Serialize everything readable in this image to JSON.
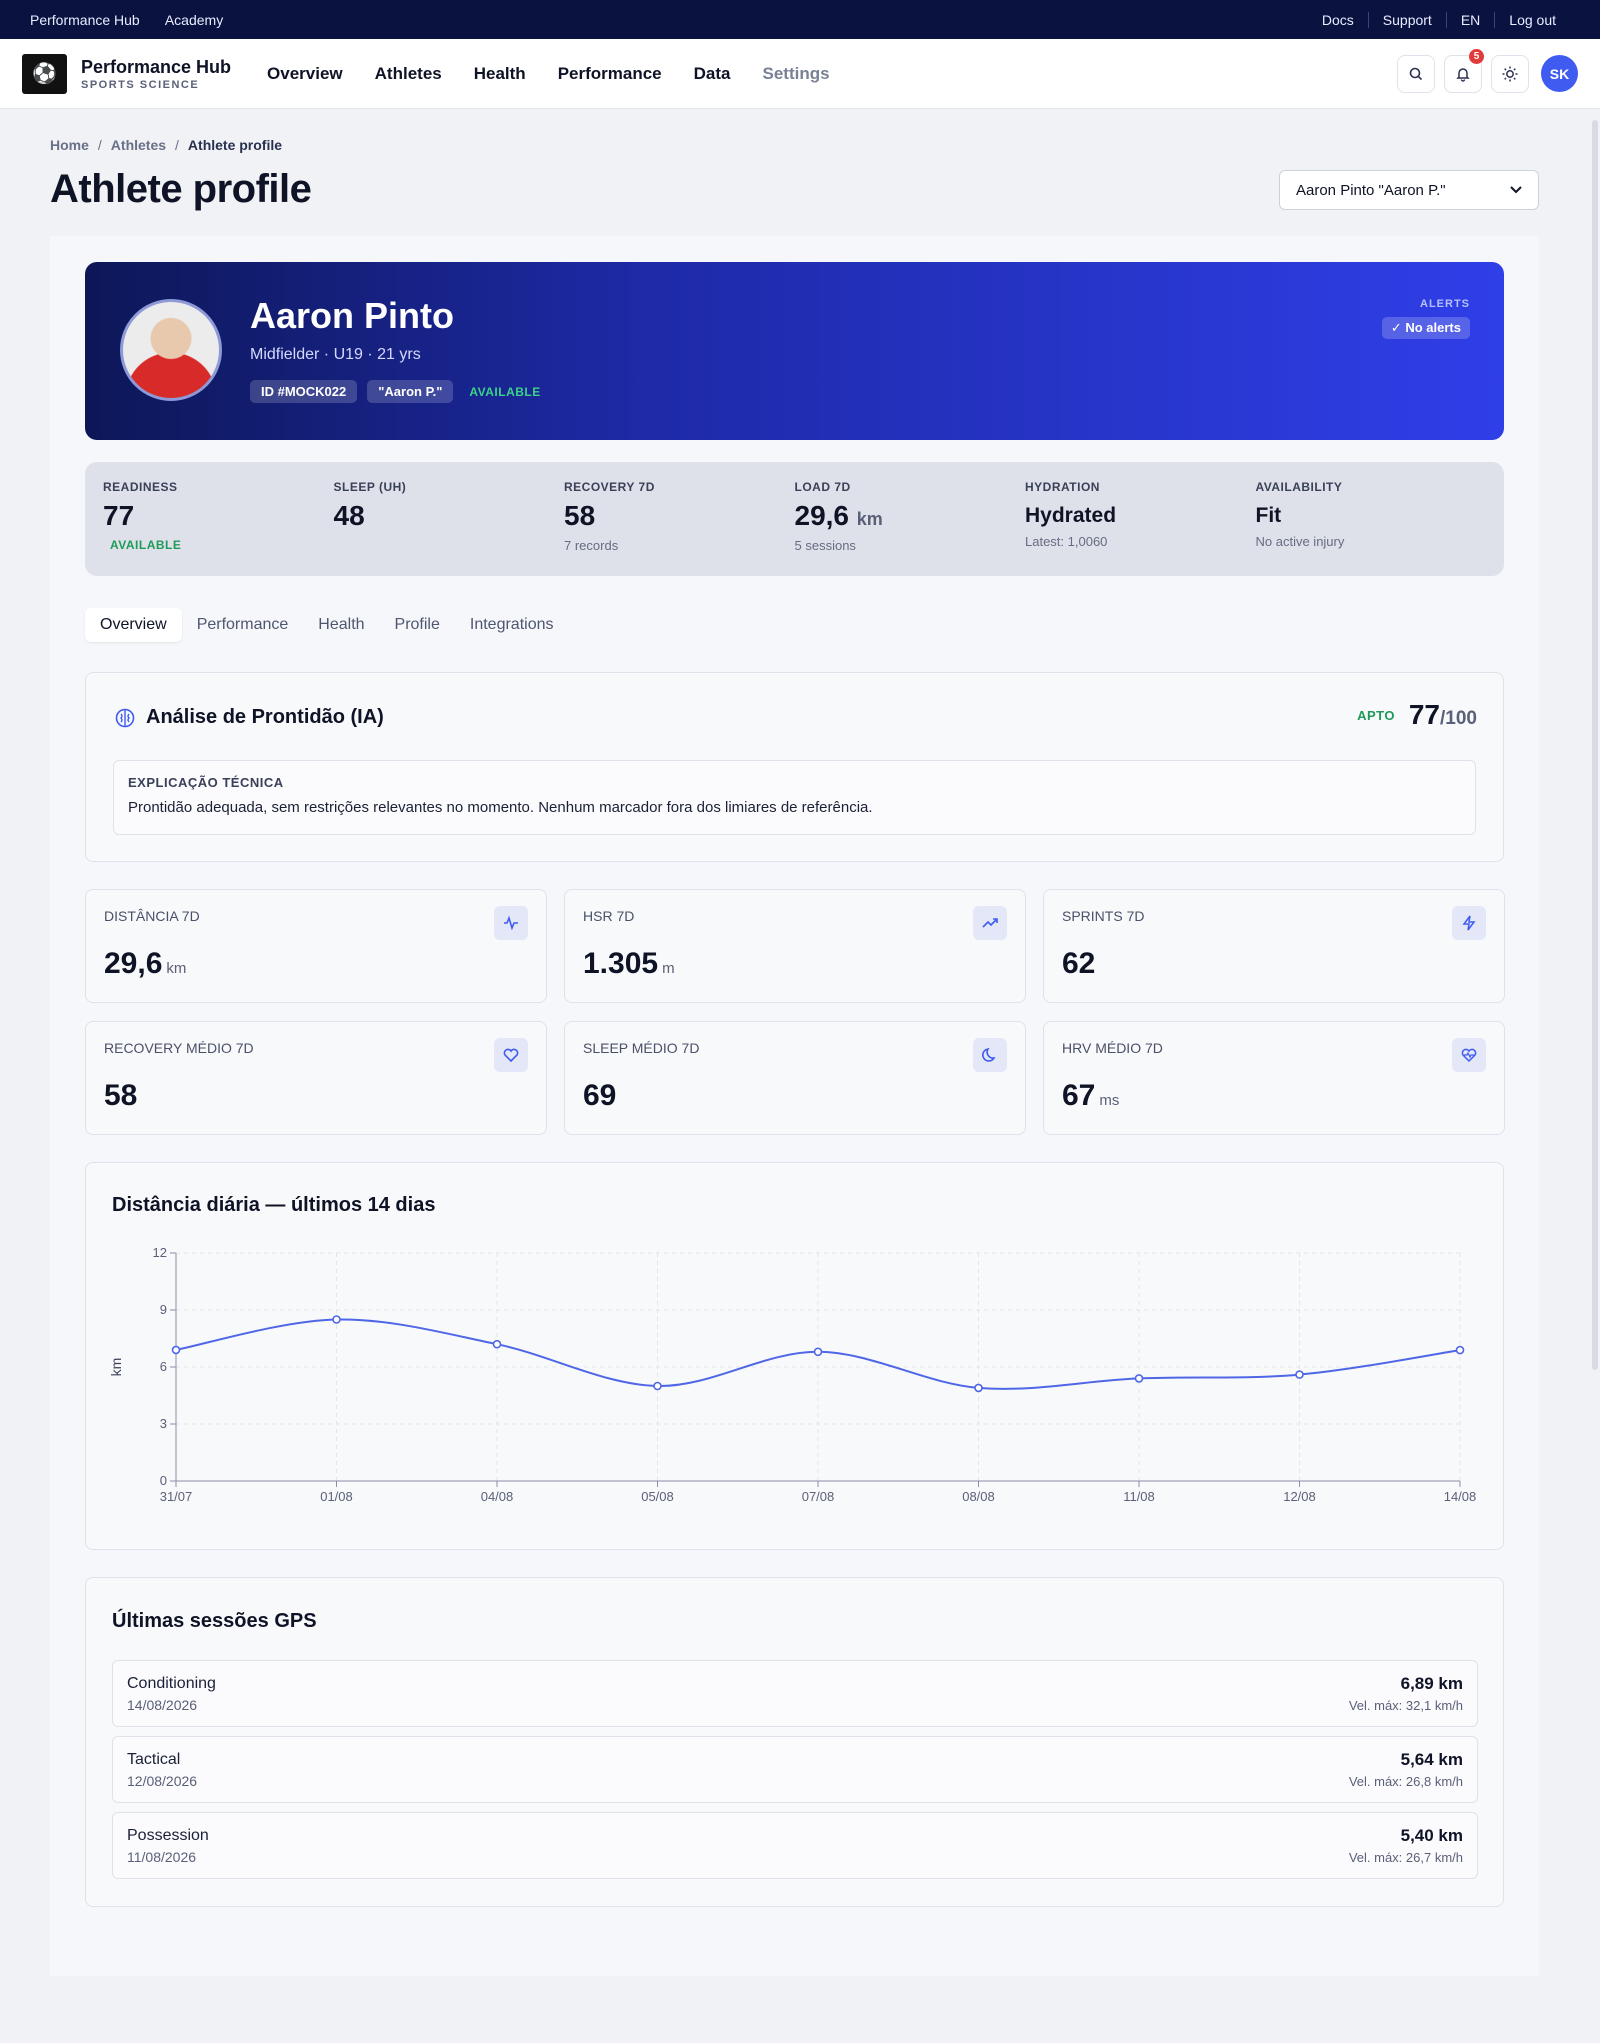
{
  "topbar": {
    "left": [
      "Performance Hub",
      "Academy"
    ],
    "right": [
      "Docs",
      "Support",
      "EN",
      "Log out"
    ]
  },
  "nav": {
    "brand_title": "Performance Hub",
    "brand_sub": "SPORTS SCIENCE",
    "links": [
      "Overview",
      "Athletes",
      "Health",
      "Performance",
      "Data",
      "Settings"
    ],
    "notifications": "5",
    "avatar": "SK",
    "icons": [
      "search-icon",
      "bell-icon",
      "sun-icon"
    ]
  },
  "breadcrumb": [
    "Home",
    "Athletes",
    "Athlete profile"
  ],
  "page_title": "Athlete profile",
  "athlete_select": "Aaron Pinto \"Aaron P.\"",
  "hero": {
    "name": "Aaron Pinto",
    "sub": "Midfielder · U19 · 21 yrs",
    "id_tag": "ID #MOCK022",
    "nick_tag": "\"Aaron P.\"",
    "status": "AVAILABLE",
    "alerts_label": "ALERTS",
    "alerts_value": "✓ No alerts"
  },
  "stats": [
    {
      "label": "READINESS",
      "value": "77",
      "unit": "",
      "note": "AVAILABLE",
      "note_green": true
    },
    {
      "label": "SLEEP (UH)",
      "value": "48",
      "unit": "",
      "note": "",
      "note_green": false
    },
    {
      "label": "RECOVERY 7D",
      "value": "58",
      "unit": "",
      "note": "7 records",
      "note_green": false
    },
    {
      "label": "LOAD 7D",
      "value": "29,6",
      "unit": "km",
      "note": "5 sessions",
      "note_green": false
    },
    {
      "label": "HYDRATION",
      "value": "Hydrated",
      "unit": "",
      "note": "Latest: 1,0060",
      "note_green": false
    },
    {
      "label": "AVAILABILITY",
      "value": "Fit",
      "unit": "",
      "note": "No active injury",
      "note_green": false
    }
  ],
  "tabs": [
    "Overview",
    "Performance",
    "Health",
    "Profile",
    "Integrations"
  ],
  "ai": {
    "title": "Análise de Prontidão (IA)",
    "status": "APTO",
    "score": "77",
    "score_den": "/100",
    "box_heading": "EXPLICAÇÃO TÉCNICA",
    "box_text": "Prontidão adequada, sem restrições relevantes no momento. Nenhum marcador fora dos limiares de referência."
  },
  "metrics": [
    {
      "label": "DISTÂNCIA 7D",
      "value": "29,6",
      "unit": "km",
      "icon": "activity-icon"
    },
    {
      "label": "HSR 7D",
      "value": "1.305",
      "unit": "m",
      "icon": "trending-up-icon"
    },
    {
      "label": "SPRINTS 7D",
      "value": "62",
      "unit": "",
      "icon": "zap-icon"
    },
    {
      "label": "RECOVERY MÉDIO 7D",
      "value": "58",
      "unit": "",
      "icon": "heart-icon"
    },
    {
      "label": "SLEEP MÉDIO 7D",
      "value": "69",
      "unit": "",
      "icon": "moon-icon"
    },
    {
      "label": "HRV MÉDIO 7D",
      "value": "67",
      "unit": "ms",
      "icon": "heart-pulse-icon"
    }
  ],
  "chart_title": "Distância diária — últimos 14 dias",
  "chart_data": {
    "type": "line",
    "title": "Distância diária — últimos 14 dias",
    "xlabel": "",
    "ylabel": "km",
    "x": [
      "31/07",
      "01/08",
      "04/08",
      "05/08",
      "07/08",
      "08/08",
      "11/08",
      "12/08",
      "14/08"
    ],
    "series": [
      {
        "values": [
          6.9,
          8.5,
          7.2,
          5.0,
          6.8,
          4.9,
          5.4,
          5.6,
          6.89
        ]
      }
    ],
    "ylim": [
      0,
      12
    ],
    "yticks": [
      0,
      3,
      6,
      9,
      12
    ],
    "grid": true,
    "color": "#4f67e6"
  },
  "gps_title": "Últimas sessões GPS",
  "gps_sessions": [
    {
      "name": "Conditioning",
      "date": "14/08/2026",
      "km": "6,89 km",
      "vmax": "Vel. máx: 32,1 km/h"
    },
    {
      "name": "Tactical",
      "date": "12/08/2026",
      "km": "5,64 km",
      "vmax": "Vel. máx: 26,8 km/h"
    },
    {
      "name": "Possession",
      "date": "11/08/2026",
      "km": "5,40 km",
      "vmax": "Vel. máx: 26,7 km/h"
    }
  ]
}
